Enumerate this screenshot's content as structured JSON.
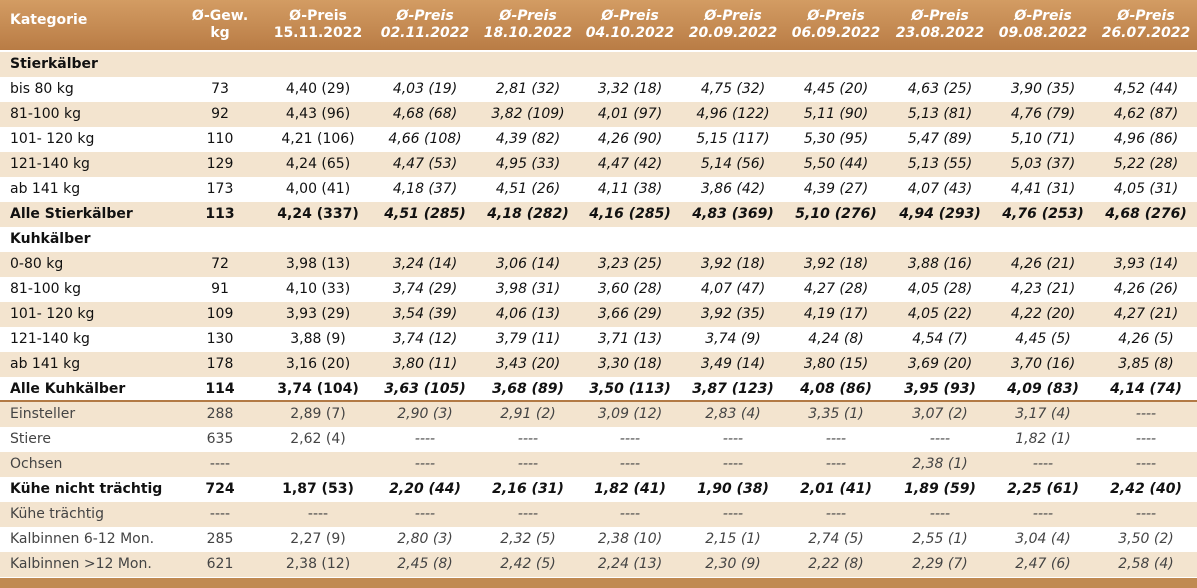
{
  "table": {
    "header": [
      {
        "lines": [
          "Kategorie"
        ]
      },
      {
        "lines": [
          "Ø-Gew.",
          "kg"
        ]
      },
      {
        "lines": [
          "Ø-Preis",
          "15.11.2022"
        ]
      },
      {
        "lines": [
          "Ø-Preis",
          "02.11.2022"
        ]
      },
      {
        "lines": [
          "Ø-Preis",
          "18.10.2022"
        ]
      },
      {
        "lines": [
          "Ø-Preis",
          "04.10.2022"
        ]
      },
      {
        "lines": [
          "Ø-Preis",
          "20.09.2022"
        ]
      },
      {
        "lines": [
          "Ø-Preis",
          "06.09.2022"
        ]
      },
      {
        "lines": [
          "Ø-Preis",
          "23.08.2022"
        ]
      },
      {
        "lines": [
          "Ø-Preis",
          "09.08.2022"
        ]
      },
      {
        "lines": [
          "Ø-Preis",
          "26.07.2022"
        ]
      }
    ],
    "rows": [
      {
        "kind": "section",
        "label": "Stierkälber"
      },
      {
        "kind": "row",
        "label": "bis 80 kg",
        "cells": [
          "73",
          "4,40 (29)",
          "4,03 (19)",
          "2,81 (32)",
          "3,32 (18)",
          "4,75 (32)",
          "4,45 (20)",
          "4,63 (25)",
          "3,90 (35)",
          "4,52 (44)"
        ]
      },
      {
        "kind": "row",
        "label": "81-100 kg",
        "cells": [
          "92",
          "4,43 (96)",
          "4,68 (68)",
          "3,82 (109)",
          "4,01 (97)",
          "4,96 (122)",
          "5,11 (90)",
          "5,13 (81)",
          "4,76 (79)",
          "4,62 (87)"
        ]
      },
      {
        "kind": "row",
        "label": "101- 120 kg",
        "cells": [
          "110",
          "4,21 (106)",
          "4,66 (108)",
          "4,39 (82)",
          "4,26 (90)",
          "5,15 (117)",
          "5,30 (95)",
          "5,47 (89)",
          "5,10 (71)",
          "4,96 (86)"
        ]
      },
      {
        "kind": "row",
        "label": "121-140 kg",
        "cells": [
          "129",
          "4,24 (65)",
          "4,47 (53)",
          "4,95 (33)",
          "4,47 (42)",
          "5,14 (56)",
          "5,50 (44)",
          "5,13 (55)",
          "5,03 (37)",
          "5,22 (28)"
        ]
      },
      {
        "kind": "row",
        "label": "ab 141 kg",
        "cells": [
          "173",
          "4,00 (41)",
          "4,18 (37)",
          "4,51 (26)",
          "4,11 (38)",
          "3,86 (42)",
          "4,39 (27)",
          "4,07 (43)",
          "4,41 (31)",
          "4,05 (31)"
        ]
      },
      {
        "kind": "total",
        "label": "Alle Stierkälber",
        "cells": [
          "113",
          "4,24 (337)",
          "4,51 (285)",
          "4,18 (282)",
          "4,16 (285)",
          "4,83 (369)",
          "5,10 (276)",
          "4,94 (293)",
          "4,76 (253)",
          "4,68 (276)"
        ]
      },
      {
        "kind": "section",
        "label": "Kuhkälber"
      },
      {
        "kind": "row",
        "label": "0-80 kg",
        "cells": [
          "72",
          "3,98 (13)",
          "3,24 (14)",
          "3,06 (14)",
          "3,23 (25)",
          "3,92 (18)",
          "3,92 (18)",
          "3,88 (16)",
          "4,26 (21)",
          "3,93 (14)"
        ]
      },
      {
        "kind": "row",
        "label": "81-100 kg",
        "cells": [
          "91",
          "4,10 (33)",
          "3,74 (29)",
          "3,98 (31)",
          "3,60 (28)",
          "4,07 (47)",
          "4,27 (28)",
          "4,05 (28)",
          "4,23 (21)",
          "4,26 (26)"
        ]
      },
      {
        "kind": "row",
        "label": "101- 120 kg",
        "cells": [
          "109",
          "3,93 (29)",
          "3,54 (39)",
          "4,06 (13)",
          "3,66 (29)",
          "3,92 (35)",
          "4,19 (17)",
          "4,05 (22)",
          "4,22 (20)",
          "4,27 (21)"
        ]
      },
      {
        "kind": "row",
        "label": "121-140 kg",
        "cells": [
          "130",
          "3,88 (9)",
          "3,74 (12)",
          "3,79 (11)",
          "3,71 (13)",
          "3,74 (9)",
          "4,24 (8)",
          "4,54 (7)",
          "4,45 (5)",
          "4,26 (5)"
        ]
      },
      {
        "kind": "row",
        "label": "ab 141 kg",
        "cells": [
          "178",
          "3,16 (20)",
          "3,80 (11)",
          "3,43 (20)",
          "3,30 (18)",
          "3,49 (14)",
          "3,80 (15)",
          "3,69 (20)",
          "3,70 (16)",
          "3,85 (8)"
        ]
      },
      {
        "kind": "total",
        "label": "Alle Kuhkälber",
        "cells": [
          "114",
          "3,74 (104)",
          "3,63 (105)",
          "3,68 (89)",
          "3,50 (113)",
          "3,87 (123)",
          "4,08 (86)",
          "3,95 (93)",
          "4,09 (83)",
          "4,14 (74)"
        ]
      },
      {
        "kind": "other",
        "label": "Einsteller",
        "cells": [
          "288",
          "2,89 (7)",
          "2,90 (3)",
          "2,91 (2)",
          "3,09 (12)",
          "2,83 (4)",
          "3,35 (1)",
          "3,07 (2)",
          "3,17 (4)",
          "----"
        ]
      },
      {
        "kind": "other",
        "label": "Stiere",
        "cells": [
          "635",
          "2,62 (4)",
          "----",
          "----",
          "----",
          "----",
          "----",
          "----",
          "1,82 (1)",
          "----"
        ]
      },
      {
        "kind": "other",
        "label": "Ochsen",
        "cells": [
          "----",
          null,
          "----",
          "----",
          "----",
          "----",
          "----",
          "2,38 (1)",
          "----",
          "----"
        ]
      },
      {
        "kind": "other-total",
        "label": "Kühe nicht trächtig",
        "cells": [
          "724",
          "1,87 (53)",
          "2,20 (44)",
          "2,16 (31)",
          "1,82 (41)",
          "1,90 (38)",
          "2,01 (41)",
          "1,89 (59)",
          "2,25 (61)",
          "2,42 (40)"
        ]
      },
      {
        "kind": "other",
        "label": "Kühe trächtig",
        "cells": [
          "----",
          "----",
          "----",
          "----",
          "----",
          "----",
          "----",
          "----",
          "----",
          "----"
        ]
      },
      {
        "kind": "other",
        "label": "Kalbinnen 6-12 Mon.",
        "cells": [
          "285",
          "2,27 (9)",
          "2,80 (3)",
          "2,32 (5)",
          "2,38 (10)",
          "2,15 (1)",
          "2,74 (5)",
          "2,55 (1)",
          "3,04 (4)",
          "3,50 (2)"
        ]
      },
      {
        "kind": "other",
        "label": "Kalbinnen >12 Mon.",
        "cells": [
          "621",
          "2,38 (12)",
          "2,45 (8)",
          "2,42 (5)",
          "2,24 (13)",
          "2,30 (9)",
          "2,22 (8)",
          "2,29 (7)",
          "2,47 (6)",
          "2,58 (4)"
        ]
      }
    ]
  }
}
